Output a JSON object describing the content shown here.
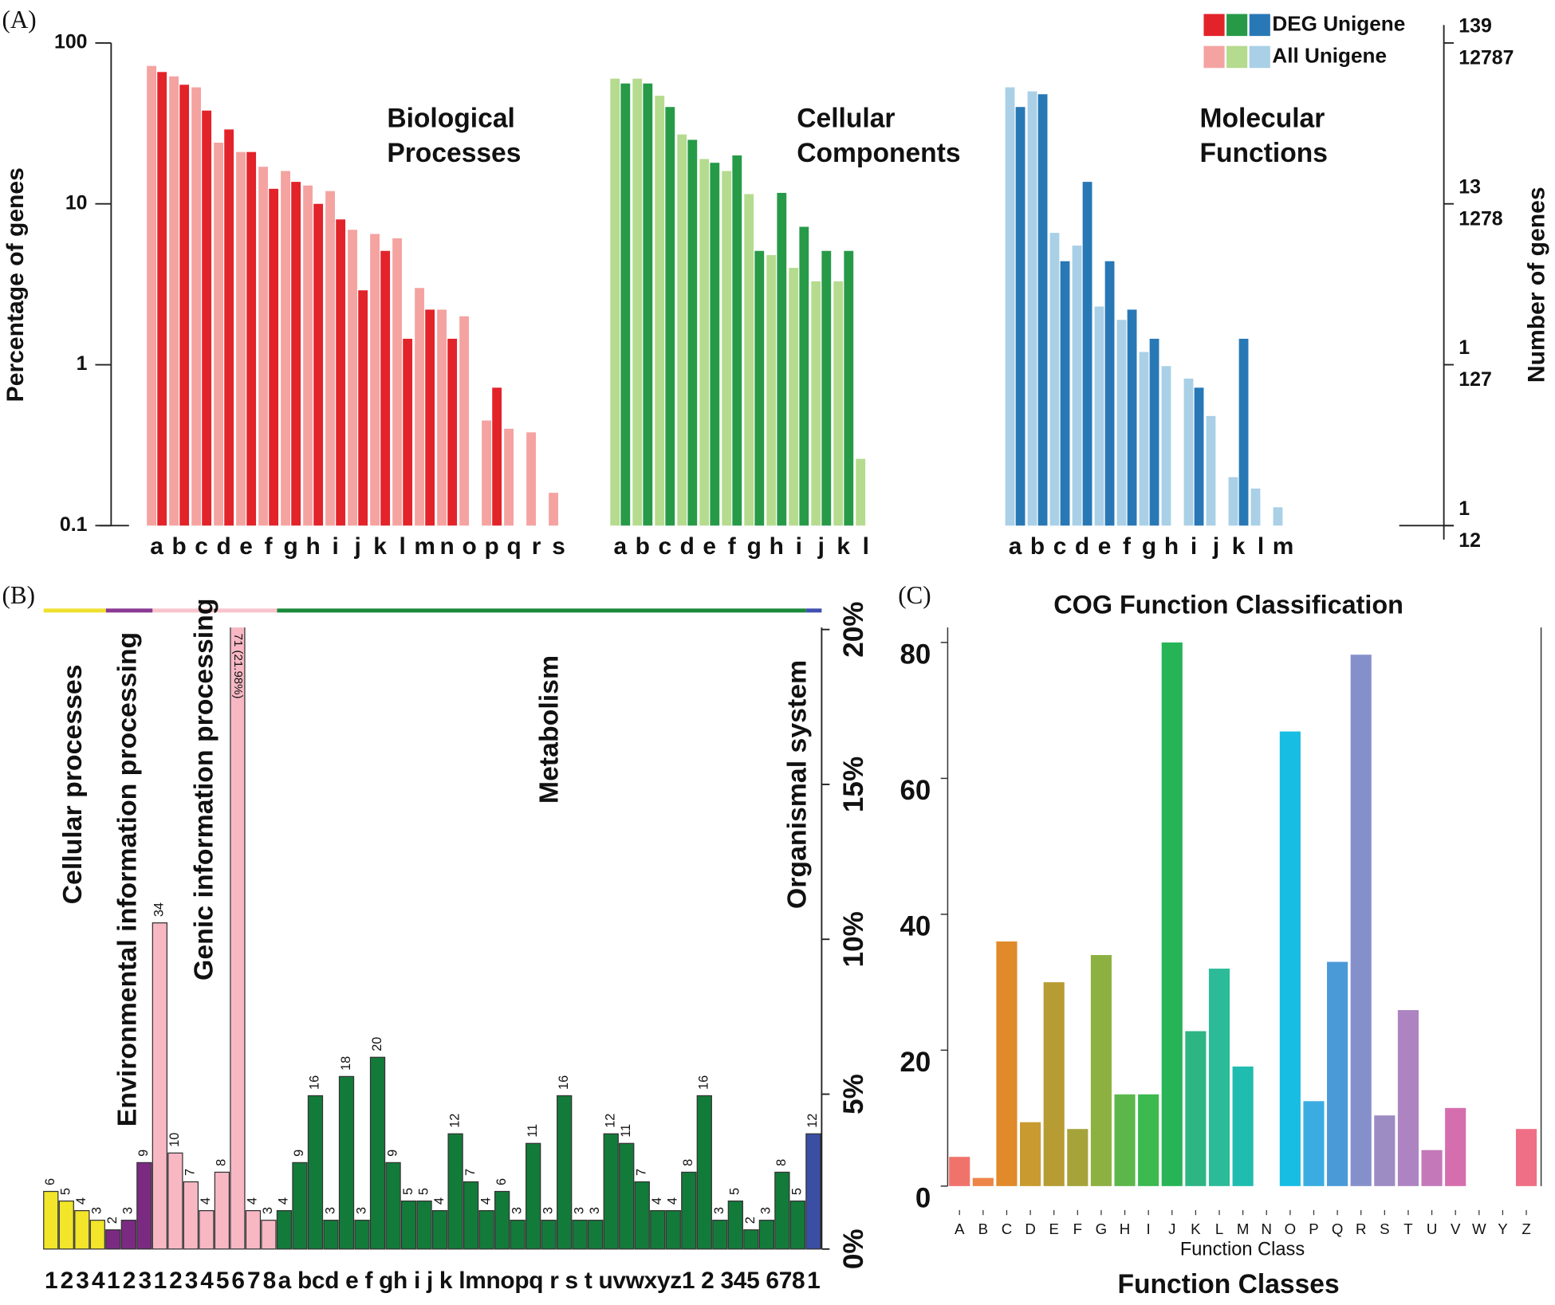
{
  "chart_data": [
    {
      "type": "log_grouped_bar",
      "panel_label": "(A)",
      "y_label": "Percentage of genes",
      "y2_label": "Number of genes",
      "log_scale": true,
      "ylim": [
        0.1,
        100
      ],
      "yticks": [
        0.1,
        1,
        10,
        100
      ],
      "y2ticks_deg": [
        {
          "value": 100,
          "label": "139"
        },
        {
          "value": 10,
          "label": "13"
        },
        {
          "value": 1,
          "label": "1"
        },
        {
          "value": 0.1,
          "label": "1"
        }
      ],
      "y2ticks_all": [
        {
          "value": 100,
          "label": "12787"
        },
        {
          "value": 10,
          "label": "1278"
        },
        {
          "value": 1,
          "label": "127"
        },
        {
          "value": 0.1,
          "label": "12"
        }
      ],
      "groups": [
        {
          "title_lines": [
            "Biological",
            "Processes"
          ],
          "categories": [
            "a",
            "b",
            "c",
            "d",
            "e",
            "f",
            "g",
            "h",
            "i",
            "j",
            "k",
            "l",
            "m",
            "n",
            "o",
            "p",
            "q",
            "r",
            "s"
          ]
        },
        {
          "title_lines": [
            "Cellular",
            "Components"
          ],
          "categories": [
            "a",
            "b",
            "c",
            "d",
            "e",
            "f",
            "g",
            "h",
            "i",
            "j",
            "k",
            "l"
          ]
        },
        {
          "title_lines": [
            "Molecular",
            "Functions"
          ],
          "categories": [
            "a",
            "b",
            "c",
            "d",
            "e",
            "f",
            "g",
            "h",
            "i",
            "j",
            "k",
            "l",
            "m"
          ]
        }
      ],
      "series": [
        {
          "name": "DEG Unigene",
          "colors": [
            "#e2232a",
            "#279a48",
            "#2878b6"
          ],
          "values": [
            [
              66,
              55,
              38,
              29,
              21,
              12.4,
              13.7,
              10,
              8,
              2.9,
              5.1,
              1.45,
              2.2,
              1.45,
              null,
              0.72,
              null,
              null,
              null
            ],
            [
              56,
              56,
              40,
              25,
              18,
              20,
              5.1,
              11.7,
              7.2,
              5.1,
              5.1,
              null
            ],
            [
              40,
              48,
              4.4,
              13.7,
              4.4,
              2.2,
              1.45,
              null,
              0.72,
              null,
              1.45,
              null,
              null
            ]
          ]
        },
        {
          "name": "All Unigene",
          "colors": [
            "#f4a3a1",
            "#b5db8e",
            "#a9d0e6"
          ],
          "values": [
            [
              72,
              62,
              53,
              24,
              21,
              17,
              16,
              13,
              12,
              6.9,
              6.5,
              6.1,
              3.0,
              2.2,
              2.0,
              0.45,
              0.4,
              0.38,
              0.16
            ],
            [
              60,
              60,
              47,
              27,
              19,
              16,
              11.5,
              4.8,
              4.0,
              3.3,
              3.3,
              0.26
            ],
            [
              53,
              50,
              6.6,
              5.5,
              2.3,
              1.9,
              1.2,
              0.98,
              0.82,
              0.48,
              0.2,
              0.17,
              0.13
            ]
          ]
        }
      ]
    },
    {
      "type": "grouped_category_bar",
      "panel_label": "(B)",
      "ylim": [
        0,
        20
      ],
      "yticks": [
        {
          "value": 0,
          "label": "0%"
        },
        {
          "value": 5,
          "label": "5%"
        },
        {
          "value": 10,
          "label": "10%"
        },
        {
          "value": 15,
          "label": "15%"
        },
        {
          "value": 20,
          "label": "20%"
        }
      ],
      "groups": [
        {
          "name": "Cellular processes",
          "color": "#f2e52a",
          "strip_color": "#f0e030",
          "axis_label": "1234",
          "values": [
            1.86,
            1.55,
            1.24,
            0.93
          ],
          "count_labels": [
            "6",
            "5",
            "4",
            "3"
          ]
        },
        {
          "name": "Environmental information processing",
          "color": "#7b2a82",
          "strip_color": "#8a3a92",
          "axis_label": "123",
          "values": [
            0.62,
            0.93,
            2.79
          ],
          "count_labels": [
            "2",
            "3",
            "9"
          ]
        },
        {
          "name": "Genic information processing",
          "color": "#f7b8c4",
          "strip_color": "#f8c4cc",
          "axis_label": "12345678",
          "values": [
            10.53,
            3.1,
            2.17,
            1.24,
            2.48,
            21.98,
            1.24,
            0.93
          ],
          "count_labels": [
            "34",
            "10",
            "7",
            "4",
            "8",
            "71 (21.98%)",
            "4",
            "3"
          ]
        },
        {
          "name": "Metabolism",
          "color": "#137b3a",
          "strip_color": "#1a8a3a",
          "axis_label": "a bcd e f gh i j k lmnopq r s t uvwxyz1 2 345 678",
          "values": [
            1.24,
            2.79,
            4.95,
            0.93,
            5.57,
            0.93,
            6.19,
            2.79,
            1.55,
            1.55,
            1.24,
            3.72,
            2.17,
            1.24,
            1.86,
            0.93,
            3.41,
            0.93,
            4.95,
            0.93,
            0.93,
            3.72,
            3.41,
            2.17,
            1.24,
            1.24,
            2.48,
            4.95,
            0.93,
            1.55,
            0.62,
            0.93,
            2.48,
            1.55
          ],
          "count_labels": [
            "4",
            "9",
            "16",
            "3",
            "18",
            "3",
            "20",
            "9",
            "5",
            "5",
            "4",
            "12",
            "7",
            "4",
            "6",
            "3",
            "11",
            "3",
            "16",
            "3",
            "3",
            "12",
            "11",
            "7",
            "4",
            "4",
            "8",
            "16",
            "3",
            "5",
            "2",
            "3",
            "8",
            "5"
          ]
        },
        {
          "name": "Organismal system",
          "color": "#3a4ea3",
          "strip_color": "#4050b0",
          "axis_label": "1",
          "values": [
            3.72
          ],
          "count_labels": [
            "12"
          ]
        }
      ]
    },
    {
      "type": "bar",
      "panel_label": "(C)",
      "title": "COG Function Classification",
      "x_label": "Function Class",
      "subtitle_below": "Function Classes",
      "ylim": [
        0,
        82.2
      ],
      "yticks": [
        0,
        20,
        40,
        60,
        80
      ],
      "categories": [
        "A",
        "B",
        "C",
        "D",
        "E",
        "F",
        "G",
        "H",
        "I",
        "J",
        "K",
        "L",
        "M",
        "N",
        "O",
        "P",
        "Q",
        "R",
        "S",
        "T",
        "U",
        "V",
        "W",
        "Y",
        "Z"
      ],
      "values": [
        4.3,
        1.2,
        36,
        9.4,
        30,
        8.4,
        34,
        13.5,
        13.5,
        80,
        22.8,
        32,
        17.6,
        0,
        66.9,
        12.5,
        33,
        78.2,
        10.4,
        25.9,
        5.3,
        11.5,
        0,
        0,
        8.4
      ],
      "colors": [
        "#f0736b",
        "#ee8548",
        "#e08a2a",
        "#c99a2f",
        "#b79c33",
        "#a5a33a",
        "#8db141",
        "#5cb74a",
        "#3cb94f",
        "#27b457",
        "#2db584",
        "#2cbb99",
        "#20bcb0",
        "#1fbcc4",
        "#17bde3",
        "#3aace2",
        "#4b9ad8",
        "#8590cb",
        "#9d8bc4",
        "#ad84c1",
        "#c478b9",
        "#d56eae",
        "#e06b9e",
        "#e86d8f",
        "#ee6f86"
      ]
    }
  ]
}
